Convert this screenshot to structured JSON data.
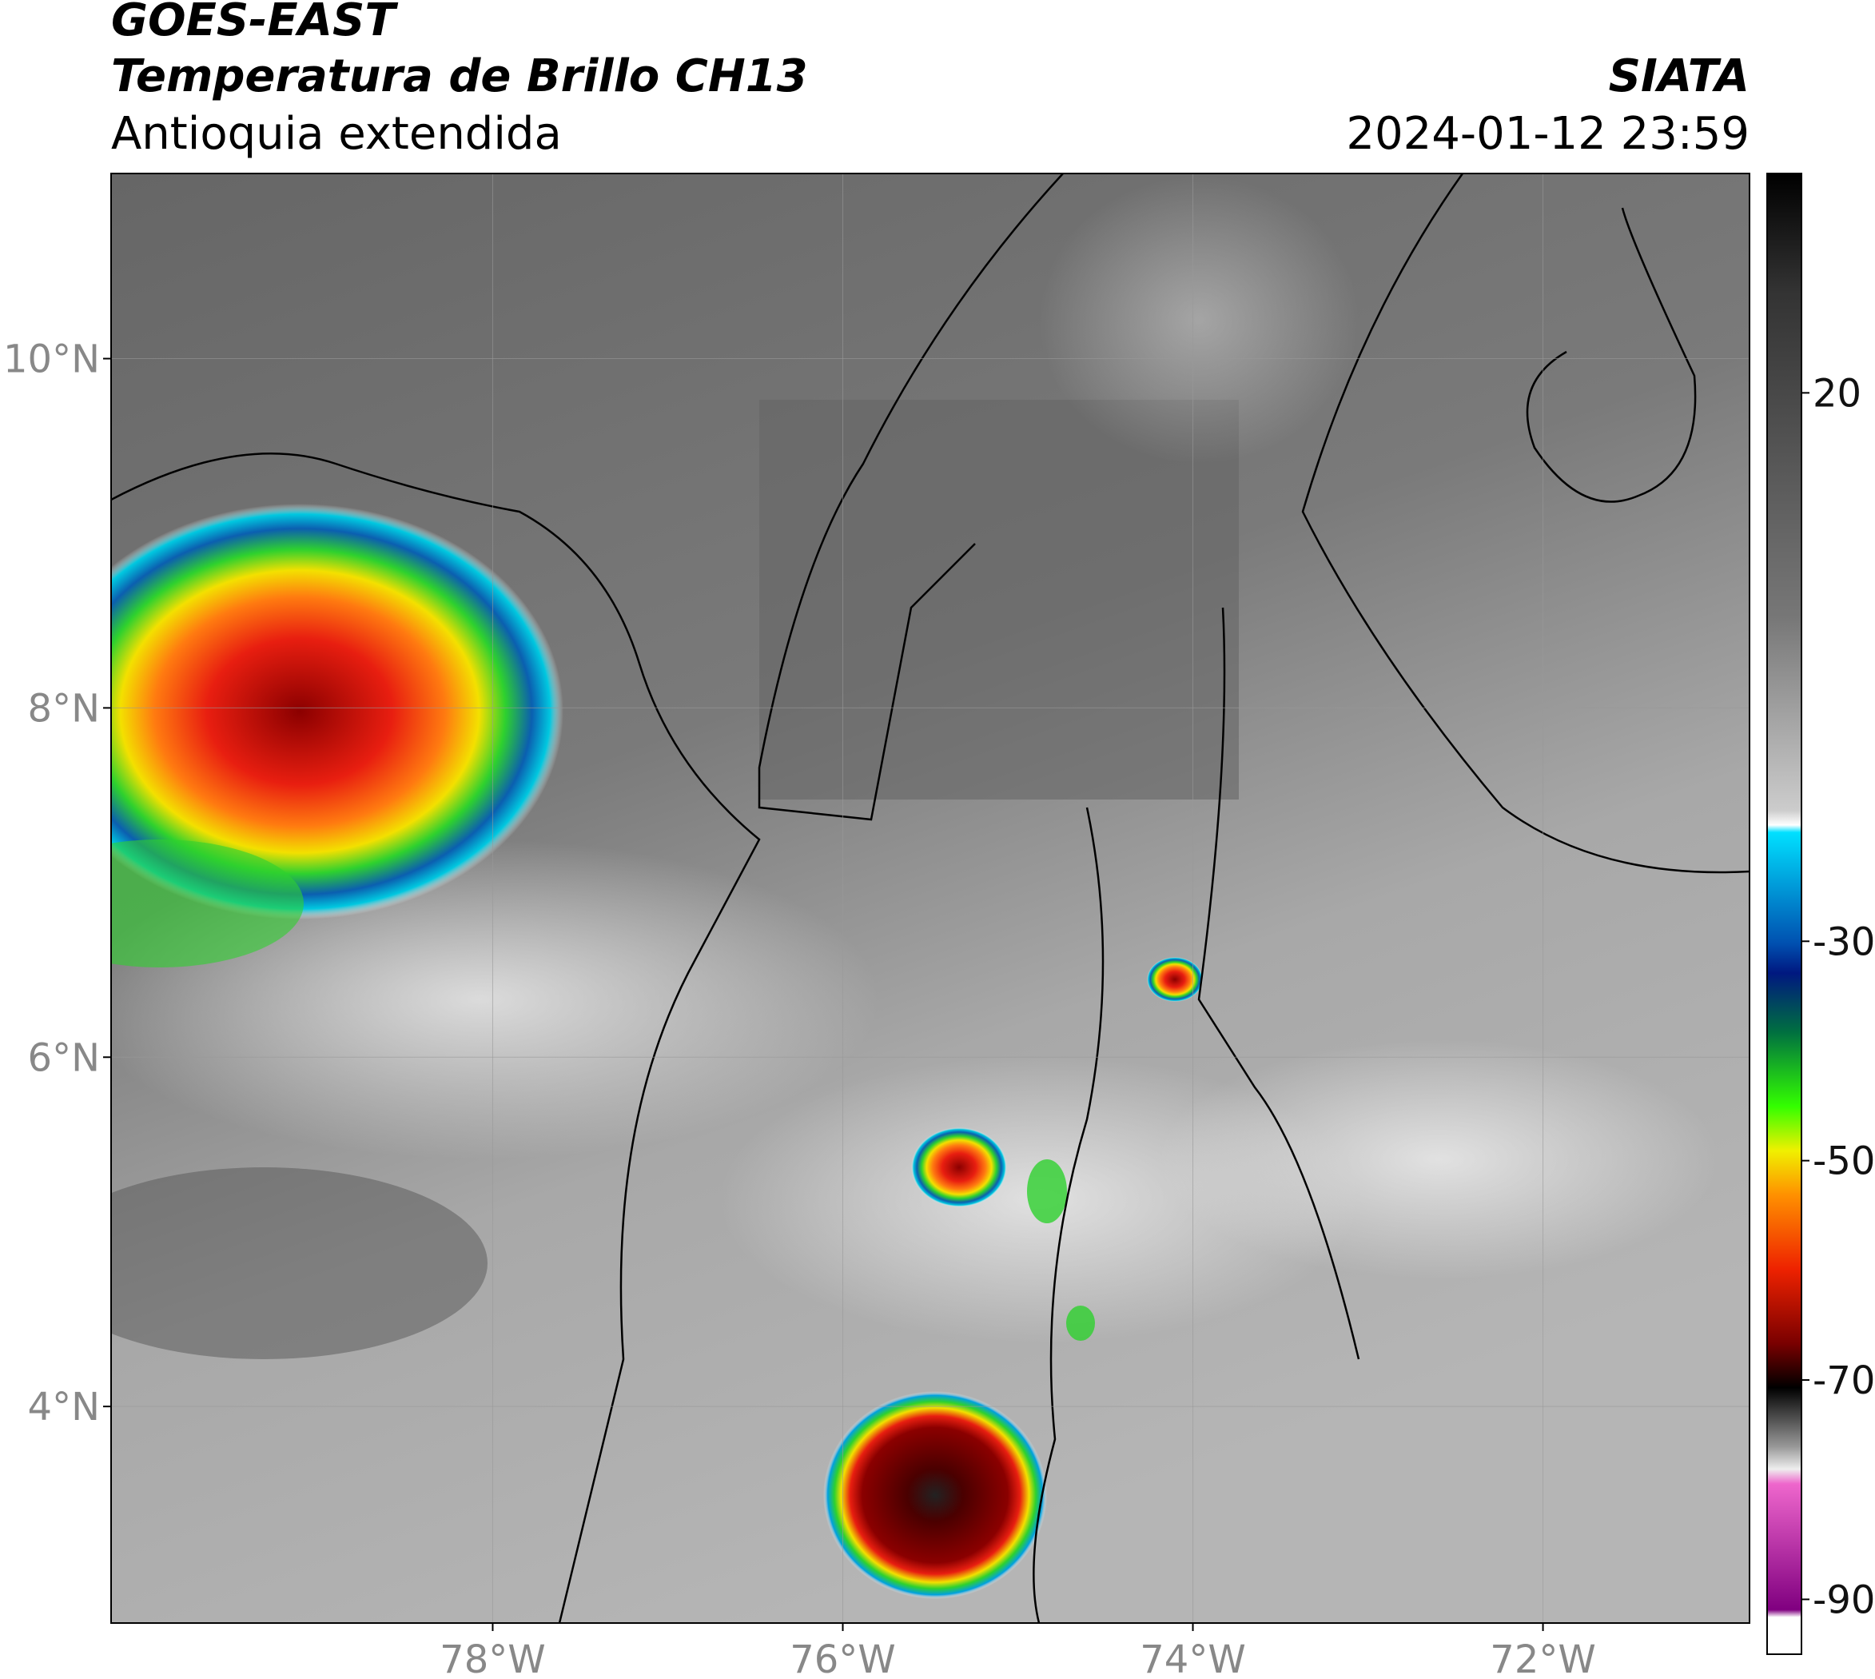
{
  "header": {
    "title": "GOES-EAST",
    "subtitle": "Temperatura de Brillo CH13",
    "region": "Antioquia extendida",
    "source": "SIATA",
    "datetime": "2024-01-12 23:59"
  },
  "map": {
    "xlim": [
      -80.18,
      -70.82
    ],
    "ylim": [
      2.76,
      11.06
    ],
    "xticks": [
      {
        "value": -78,
        "label": "78°W"
      },
      {
        "value": -76,
        "label": "76°W"
      },
      {
        "value": -74,
        "label": "74°W"
      },
      {
        "value": -72,
        "label": "72°W"
      }
    ],
    "yticks": [
      {
        "value": 10,
        "label": "10°N"
      },
      {
        "value": 8,
        "label": "8°N"
      },
      {
        "value": 6,
        "label": "6°N"
      },
      {
        "value": 4,
        "label": "4°N"
      }
    ],
    "grid": true
  },
  "colorbar": {
    "lim": [
      -95,
      40
    ],
    "ticks": [
      20,
      -30,
      -50,
      -70,
      -90
    ]
  }
}
